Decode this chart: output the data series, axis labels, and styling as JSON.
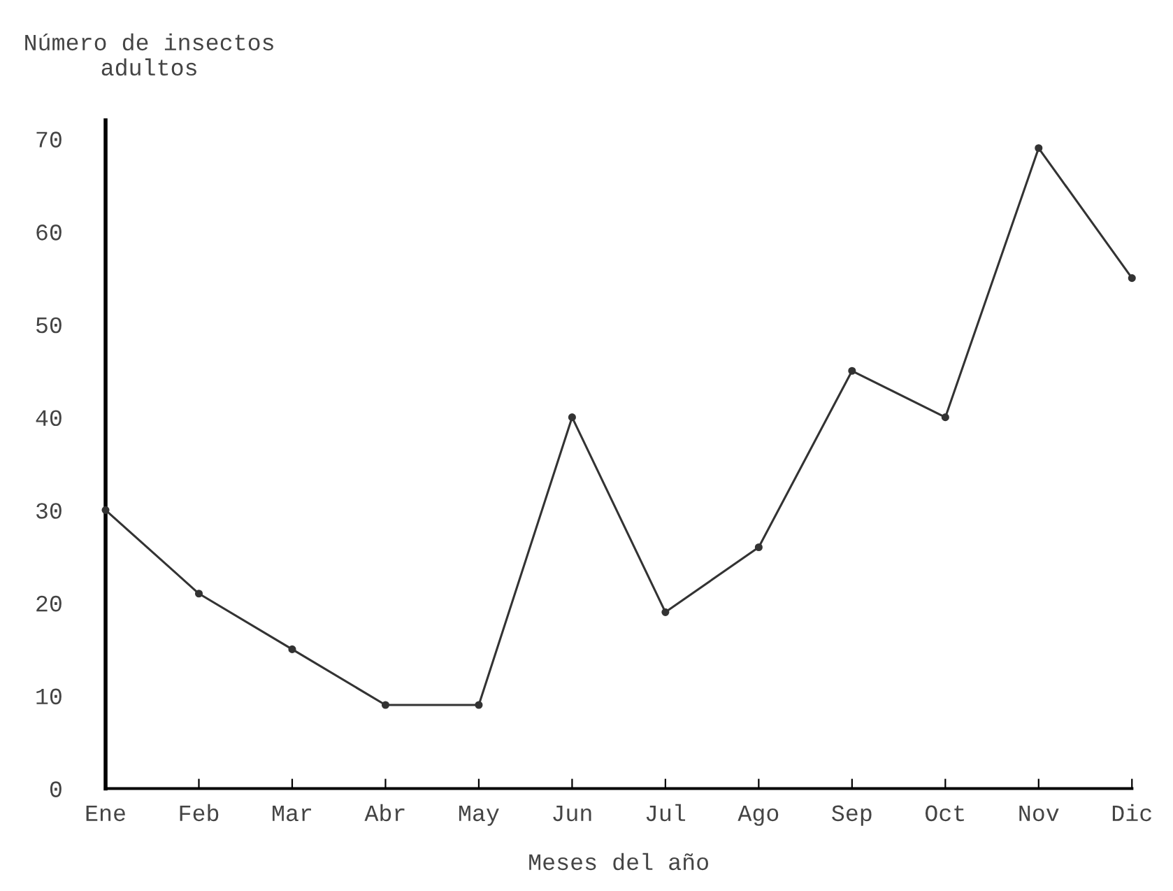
{
  "chart_data": {
    "type": "line",
    "ylabel": "Número de insectos\nadultos",
    "xlabel": "Meses del año",
    "categories": [
      "Ene",
      "Feb",
      "Mar",
      "Abr",
      "May",
      "Jun",
      "Jul",
      "Ago",
      "Sep",
      "Oct",
      "Nov",
      "Dic"
    ],
    "series": [
      {
        "color": "#333333",
        "values": [
          30,
          21,
          15,
          9,
          9,
          40,
          19,
          26,
          45,
          40,
          69,
          55
        ]
      }
    ],
    "ylim": [
      0,
      72
    ],
    "yticks": [
      0,
      10,
      20,
      30,
      40,
      50,
      60,
      70
    ],
    "grid": false,
    "legend": false,
    "marker": "circle",
    "line_style": "solid"
  }
}
